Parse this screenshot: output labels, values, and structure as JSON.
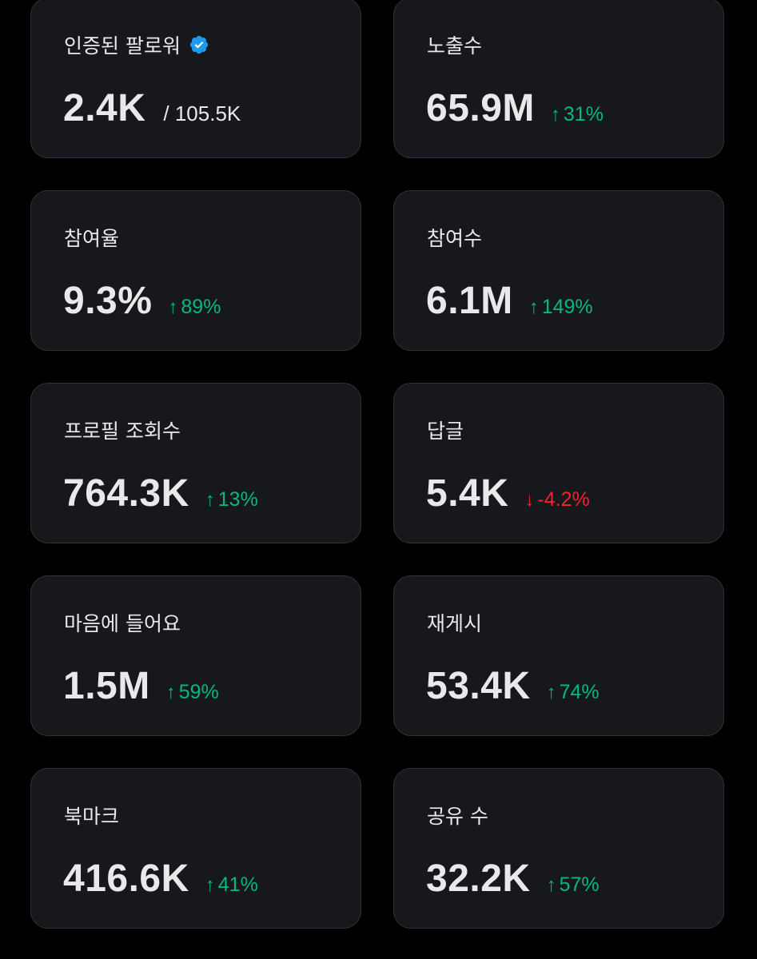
{
  "colors": {
    "background": "#000000",
    "card": "#16181c",
    "card_border": "#2f3336",
    "text": "#e7e9ea",
    "positive": "#00ba7c",
    "negative": "#f4212e",
    "verified": "#1d9bf0"
  },
  "metrics": [
    {
      "label": "인증된 팔로워",
      "icon": "verified-badge-icon",
      "value": "2.4K",
      "sub": "/ 105.5K"
    },
    {
      "label": "노출수",
      "value": "65.9M",
      "delta": "31%",
      "direction": "up",
      "arrow": "↑"
    },
    {
      "label": "참여율",
      "value": "9.3%",
      "delta": "89%",
      "direction": "up",
      "arrow": "↑"
    },
    {
      "label": "참여수",
      "value": "6.1M",
      "delta": "149%",
      "direction": "up",
      "arrow": "↑"
    },
    {
      "label": "프로필 조회수",
      "value": "764.3K",
      "delta": "13%",
      "direction": "up",
      "arrow": "↑"
    },
    {
      "label": "답글",
      "value": "5.4K",
      "delta": "-4.2%",
      "direction": "down",
      "arrow": "↓"
    },
    {
      "label": "마음에 들어요",
      "value": "1.5M",
      "delta": "59%",
      "direction": "up",
      "arrow": "↑"
    },
    {
      "label": "재게시",
      "value": "53.4K",
      "delta": "74%",
      "direction": "up",
      "arrow": "↑"
    },
    {
      "label": "북마크",
      "value": "416.6K",
      "delta": "41%",
      "direction": "up",
      "arrow": "↑"
    },
    {
      "label": "공유 수",
      "value": "32.2K",
      "delta": "57%",
      "direction": "up",
      "arrow": "↑"
    }
  ]
}
